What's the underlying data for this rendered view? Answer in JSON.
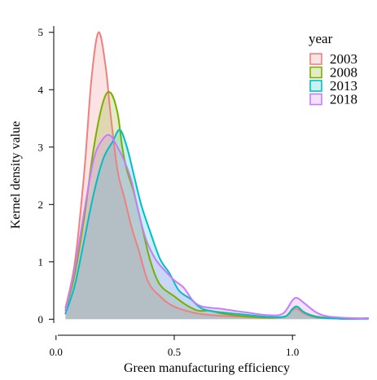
{
  "chart_data": {
    "type": "area",
    "title": "",
    "xlabel": "Green manufacturing efficiency",
    "ylabel": "Kernel density value",
    "xlim": [
      -0.02,
      1.33
    ],
    "ylim": [
      -0.18,
      5.28
    ],
    "x_ticks": [
      0.0,
      0.5,
      1.0
    ],
    "x_tick_labels": [
      "0.0",
      "0.5",
      "1.0"
    ],
    "y_ticks": [
      0,
      1,
      2,
      3,
      4,
      5
    ],
    "y_tick_labels": [
      "0",
      "1",
      "2",
      "3",
      "4",
      "5"
    ],
    "grid": false,
    "legend": {
      "title": "year",
      "position": "top-right"
    },
    "series": [
      {
        "name": "2003",
        "color": "#f08080",
        "points": [
          [
            0.04,
            0.2
          ],
          [
            0.08,
            1.0
          ],
          [
            0.12,
            2.6
          ],
          [
            0.15,
            4.2
          ],
          [
            0.18,
            5.0
          ],
          [
            0.21,
            4.4
          ],
          [
            0.23,
            3.6
          ],
          [
            0.26,
            2.6
          ],
          [
            0.29,
            2.1
          ],
          [
            0.32,
            1.6
          ],
          [
            0.35,
            1.2
          ],
          [
            0.39,
            0.65
          ],
          [
            0.44,
            0.4
          ],
          [
            0.5,
            0.22
          ],
          [
            0.6,
            0.1
          ],
          [
            0.7,
            0.06
          ],
          [
            0.8,
            0.04
          ],
          [
            0.9,
            0.02
          ],
          [
            0.97,
            0.05
          ],
          [
            1.0,
            0.16
          ],
          [
            1.02,
            0.18
          ],
          [
            1.05,
            0.1
          ],
          [
            1.1,
            0.03
          ],
          [
            1.2,
            0.01
          ],
          [
            1.32,
            0.01
          ]
        ]
      },
      {
        "name": "2008",
        "color": "#7cae00",
        "points": [
          [
            0.04,
            0.15
          ],
          [
            0.08,
            0.8
          ],
          [
            0.12,
            1.8
          ],
          [
            0.16,
            3.0
          ],
          [
            0.2,
            3.8
          ],
          [
            0.23,
            3.95
          ],
          [
            0.26,
            3.6
          ],
          [
            0.28,
            3.0
          ],
          [
            0.3,
            2.6
          ],
          [
            0.33,
            2.2
          ],
          [
            0.37,
            1.5
          ],
          [
            0.4,
            1.0
          ],
          [
            0.44,
            0.6
          ],
          [
            0.5,
            0.4
          ],
          [
            0.55,
            0.25
          ],
          [
            0.6,
            0.15
          ],
          [
            0.65,
            0.15
          ],
          [
            0.7,
            0.1
          ],
          [
            0.8,
            0.05
          ],
          [
            0.9,
            0.03
          ],
          [
            0.97,
            0.05
          ],
          [
            1.0,
            0.18
          ],
          [
            1.02,
            0.22
          ],
          [
            1.05,
            0.12
          ],
          [
            1.1,
            0.05
          ],
          [
            1.2,
            0.01
          ],
          [
            1.32,
            0.01
          ]
        ]
      },
      {
        "name": "2013",
        "color": "#00bfc4",
        "points": [
          [
            0.04,
            0.1
          ],
          [
            0.08,
            0.6
          ],
          [
            0.12,
            1.4
          ],
          [
            0.16,
            2.2
          ],
          [
            0.2,
            2.8
          ],
          [
            0.24,
            3.1
          ],
          [
            0.27,
            3.3
          ],
          [
            0.3,
            3.0
          ],
          [
            0.33,
            2.5
          ],
          [
            0.36,
            2.0
          ],
          [
            0.4,
            1.5
          ],
          [
            0.44,
            1.05
          ],
          [
            0.48,
            0.8
          ],
          [
            0.52,
            0.5
          ],
          [
            0.57,
            0.35
          ],
          [
            0.62,
            0.18
          ],
          [
            0.7,
            0.12
          ],
          [
            0.8,
            0.08
          ],
          [
            0.9,
            0.04
          ],
          [
            0.97,
            0.05
          ],
          [
            1.0,
            0.18
          ],
          [
            1.02,
            0.22
          ],
          [
            1.05,
            0.12
          ],
          [
            1.1,
            0.04
          ],
          [
            1.2,
            0.01
          ],
          [
            1.32,
            0.01
          ]
        ]
      },
      {
        "name": "2018",
        "color": "#c77cff",
        "points": [
          [
            0.04,
            0.15
          ],
          [
            0.08,
            0.9
          ],
          [
            0.12,
            1.9
          ],
          [
            0.16,
            2.8
          ],
          [
            0.2,
            3.15
          ],
          [
            0.23,
            3.2
          ],
          [
            0.26,
            3.0
          ],
          [
            0.29,
            2.75
          ],
          [
            0.32,
            2.4
          ],
          [
            0.35,
            1.85
          ],
          [
            0.38,
            1.4
          ],
          [
            0.42,
            1.05
          ],
          [
            0.46,
            0.85
          ],
          [
            0.5,
            0.68
          ],
          [
            0.54,
            0.55
          ],
          [
            0.58,
            0.32
          ],
          [
            0.62,
            0.22
          ],
          [
            0.7,
            0.18
          ],
          [
            0.8,
            0.12
          ],
          [
            0.9,
            0.07
          ],
          [
            0.96,
            0.1
          ],
          [
            1.0,
            0.33
          ],
          [
            1.02,
            0.37
          ],
          [
            1.05,
            0.28
          ],
          [
            1.1,
            0.12
          ],
          [
            1.15,
            0.05
          ],
          [
            1.25,
            0.02
          ],
          [
            1.32,
            0.02
          ]
        ]
      }
    ]
  }
}
